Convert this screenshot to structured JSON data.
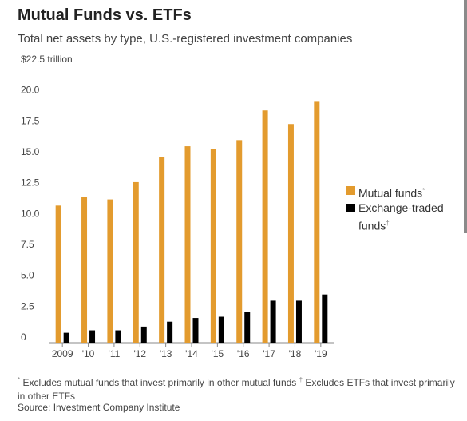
{
  "title": "Mutual Funds vs. ETFs",
  "subtitle": "Total net assets by type, U.S.-registered investment companies",
  "legend": {
    "mutual_funds": "Mutual funds",
    "mutual_funds_mark": "*",
    "etf": "Exchange-traded",
    "etf_line2": "funds",
    "etf_mark": "†"
  },
  "notes": {
    "mark1": "*",
    "note1": " Excludes mutual funds that invest primarily in other mutual funds   ",
    "mark2": "†",
    "note2": " Excludes ETFs that invest primarily in other ETFs"
  },
  "source": "Source: Investment Company Institute",
  "colors": {
    "mutual_funds": "#E39B2E",
    "etf": "#000000",
    "axis": "#888888"
  },
  "chart_data": {
    "type": "bar",
    "title": "Mutual Funds vs. ETFs",
    "subtitle": "Total net assets by type, U.S.-registered investment companies",
    "categories": [
      "2009",
      "'10",
      "'11",
      "'12",
      "'13",
      "'14",
      "'15",
      "'16",
      "'17",
      "'18",
      "'19"
    ],
    "series": [
      {
        "name": "Mutual funds",
        "values": [
          11.1,
          11.8,
          11.6,
          13.0,
          15.0,
          15.9,
          15.7,
          16.4,
          18.8,
          17.7,
          19.5
        ]
      },
      {
        "name": "Exchange-traded funds",
        "values": [
          0.8,
          1.0,
          1.0,
          1.3,
          1.7,
          2.0,
          2.1,
          2.5,
          3.4,
          3.4,
          3.9
        ]
      }
    ],
    "y_ticks": [
      "0",
      "2.5",
      "5.0",
      "7.5",
      "10.0",
      "12.5",
      "15.0",
      "17.5",
      "20.0",
      "$22.5 trillion"
    ],
    "ylim": [
      0,
      22.5
    ],
    "grid": false,
    "legend_position": "right"
  }
}
